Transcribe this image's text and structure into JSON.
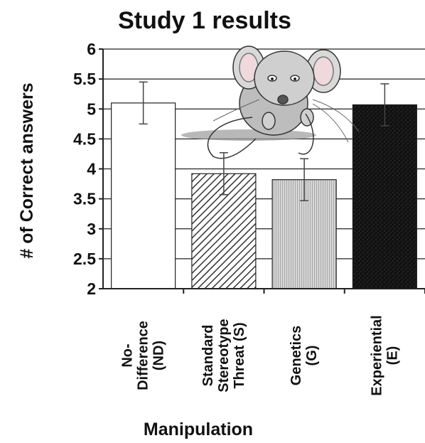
{
  "chart_data": {
    "type": "bar",
    "title": "Study 1 results",
    "xlabel": "Manipulation",
    "ylabel": "# of Correct answers",
    "ylim": [
      2,
      6
    ],
    "yticks": [
      "2",
      "2.5",
      "3",
      "3.5",
      "4",
      "4.5",
      "5",
      "5.5",
      "6"
    ],
    "grid": true,
    "categories": [
      [
        "No-",
        "Difference",
        "(ND)"
      ],
      [
        "Standard",
        "Stereotype",
        "Threat (S)"
      ],
      [
        "Genetics",
        "(G)"
      ],
      [
        "Experiential",
        "(E)"
      ]
    ],
    "values": [
      5.1,
      3.92,
      3.82,
      5.07
    ],
    "error": [
      0.35,
      0.35,
      0.35,
      0.35
    ],
    "fills": [
      "white",
      "diagonal-hatch",
      "light-stripe",
      "dark-speckle"
    ]
  }
}
